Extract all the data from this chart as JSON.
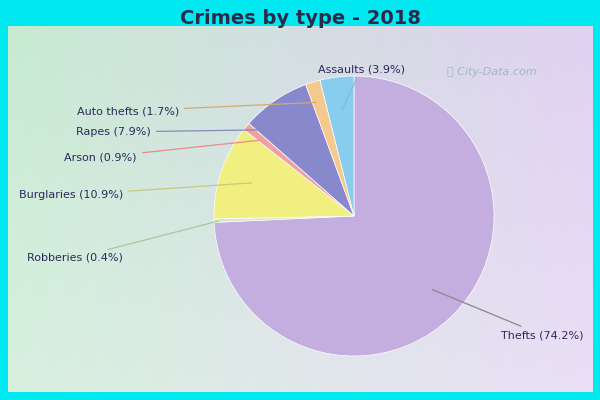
{
  "title": "Crimes by type - 2018",
  "title_fontsize": 14,
  "title_fontweight": "bold",
  "title_color": "#2a2a4a",
  "plot_labels": [
    "Thefts",
    "Robberies",
    "Burglaries",
    "Arson",
    "Rapes",
    "Auto thefts",
    "Assaults"
  ],
  "plot_values": [
    74.2,
    0.4,
    10.9,
    0.9,
    7.9,
    1.7,
    3.9
  ],
  "plot_colors": [
    "#c4aee0",
    "#d4e8c4",
    "#f0ef80",
    "#f0a0a0",
    "#8888cc",
    "#f5c890",
    "#88ccee"
  ],
  "border_color": "#00e8f0",
  "border_width": 8,
  "label_color": "#2a2a5a",
  "label_fontsize": 8,
  "watermark": "City-Data.com",
  "watermark_color": "#a0b8c0",
  "annotations": [
    {
      "label": "Thefts (74.2%)",
      "ha": "left",
      "va": "center"
    },
    {
      "label": "Robberies (0.4%)",
      "ha": "right",
      "va": "center"
    },
    {
      "label": "Burglaries (10.9%)",
      "ha": "right",
      "va": "center"
    },
    {
      "label": "Arson (0.9%)",
      "ha": "right",
      "va": "center"
    },
    {
      "label": "Rapes (7.9%)",
      "ha": "right",
      "va": "center"
    },
    {
      "label": "Auto thefts (1.7%)",
      "ha": "right",
      "va": "center"
    },
    {
      "label": "Assaults (3.9%)",
      "ha": "center",
      "va": "bottom"
    }
  ]
}
